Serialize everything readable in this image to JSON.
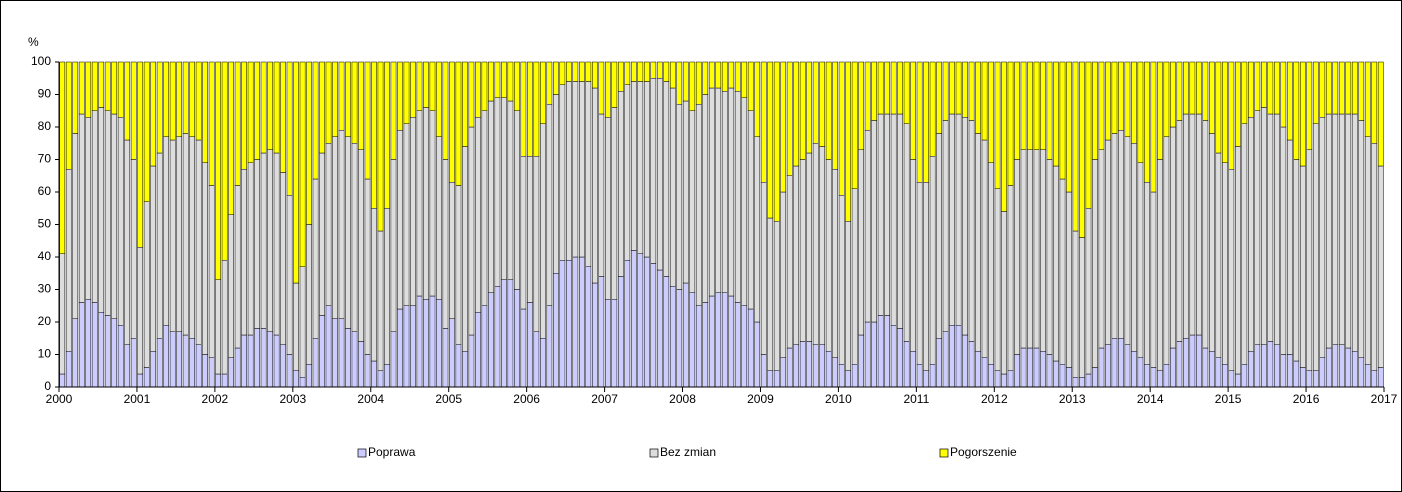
{
  "chart_data": {
    "type": "stacked_bar",
    "y_label": "%",
    "categories": [
      null,
      null,
      null,
      null,
      null,
      null,
      null,
      null,
      null,
      null,
      null,
      null,
      null,
      null,
      null,
      null,
      null,
      null,
      null,
      null,
      null,
      null,
      null,
      null,
      null,
      null,
      null,
      null,
      null,
      null,
      null,
      null,
      null,
      null,
      null,
      null,
      null,
      null,
      null,
      null,
      null,
      null,
      null,
      null,
      null,
      null,
      null,
      null,
      null,
      null,
      null,
      null,
      null,
      null,
      null,
      null,
      null,
      null,
      null,
      null,
      null,
      null,
      null,
      null,
      null,
      null,
      null,
      null,
      null,
      null,
      null,
      null,
      null,
      null,
      null,
      null,
      null,
      null,
      null,
      null,
      null,
      null,
      null,
      null,
      null,
      null,
      null,
      null,
      null,
      null,
      null,
      null,
      null,
      null,
      null,
      null,
      null,
      null,
      null,
      null,
      null,
      null,
      null,
      null,
      null,
      null,
      null,
      null,
      null,
      null,
      null,
      null,
      null,
      null,
      null,
      null,
      null,
      null,
      null,
      null,
      null,
      null,
      null,
      null,
      null,
      null,
      null,
      null,
      null,
      null,
      null,
      null,
      null,
      null,
      null,
      null,
      null,
      null,
      null,
      null,
      null,
      null,
      null,
      null,
      null,
      null,
      null,
      null,
      null,
      null,
      null,
      null,
      null,
      null,
      null,
      null,
      null,
      null,
      null,
      null,
      null,
      null,
      null,
      null,
      null,
      null,
      null,
      null,
      null,
      null,
      null,
      null,
      null,
      null,
      null,
      null,
      null,
      null,
      null,
      null,
      null,
      null,
      null,
      null,
      null,
      null,
      null,
      null,
      null,
      null,
      null,
      null,
      null,
      null,
      null,
      null,
      null,
      null,
      null,
      null,
      null,
      null,
      null,
      null
    ],
    "series": [
      {
        "name": "Poprawa",
        "color": "#ccccff",
        "values": [
          4,
          11,
          21,
          26,
          27,
          26,
          23,
          22,
          21,
          19,
          13,
          15,
          4,
          6,
          11,
          15,
          19,
          17,
          17,
          16,
          15,
          13,
          10,
          9,
          4,
          4,
          9,
          12,
          16,
          16,
          18,
          18,
          17,
          16,
          13,
          10,
          5,
          3,
          7,
          15,
          22,
          25,
          21,
          21,
          18,
          17,
          14,
          10,
          8,
          5,
          7,
          17,
          24,
          25,
          25,
          28,
          27,
          28,
          27,
          18,
          21,
          13,
          11,
          16,
          23,
          25,
          29,
          31,
          33,
          33,
          30,
          24,
          26,
          17,
          15,
          25,
          35,
          39,
          39,
          40,
          40,
          37,
          32,
          34,
          27,
          27,
          34,
          39,
          42,
          41,
          40,
          38,
          36,
          34,
          31,
          30,
          32,
          29,
          25,
          26,
          28,
          29,
          29,
          28,
          26,
          25,
          24,
          20,
          10,
          5,
          5,
          9,
          12,
          13,
          14,
          14,
          13,
          13,
          11,
          9,
          7,
          5,
          7,
          16,
          20,
          20,
          22,
          22,
          19,
          18,
          14,
          11,
          7,
          5,
          7,
          15,
          17,
          19,
          19,
          16,
          14,
          11,
          9,
          7,
          5,
          4,
          5,
          10,
          12,
          12,
          12,
          11,
          10,
          8,
          7,
          6,
          3,
          3,
          4,
          6,
          12,
          13,
          15,
          15,
          13,
          11,
          9,
          7,
          6,
          5,
          7,
          12,
          14,
          15,
          16,
          16,
          12,
          11,
          9,
          7,
          5,
          4,
          7,
          11,
          13,
          13,
          14,
          13,
          10,
          10,
          8,
          6,
          5,
          5,
          9,
          12,
          13,
          13,
          12,
          11,
          9,
          7,
          5,
          6
        ]
      },
      {
        "name": "Bez zmian",
        "color": "#dddddd",
        "values": [
          37,
          56,
          57,
          58,
          56,
          59,
          63,
          63,
          63,
          64,
          63,
          55,
          39,
          51,
          57,
          57,
          58,
          59,
          60,
          62,
          62,
          63,
          59,
          53,
          29,
          35,
          44,
          50,
          51,
          53,
          52,
          54,
          56,
          56,
          53,
          49,
          27,
          34,
          43,
          49,
          50,
          50,
          56,
          58,
          59,
          58,
          59,
          54,
          47,
          43,
          48,
          53,
          55,
          56,
          58,
          57,
          59,
          57,
          50,
          52,
          42,
          49,
          63,
          64,
          60,
          60,
          59,
          58,
          56,
          55,
          55,
          47,
          45,
          54,
          66,
          62,
          55,
          54,
          55,
          54,
          54,
          57,
          60,
          50,
          56,
          59,
          57,
          54,
          52,
          53,
          54,
          57,
          59,
          60,
          61,
          57,
          56,
          56,
          62,
          64,
          64,
          63,
          62,
          64,
          65,
          64,
          61,
          57,
          53,
          47,
          46,
          51,
          53,
          55,
          56,
          58,
          62,
          61,
          59,
          58,
          52,
          46,
          54,
          57,
          59,
          62,
          62,
          62,
          65,
          66,
          67,
          59,
          56,
          58,
          64,
          63,
          65,
          65,
          65,
          67,
          68,
          67,
          67,
          62,
          56,
          50,
          57,
          60,
          61,
          61,
          61,
          62,
          60,
          60,
          57,
          54,
          45,
          43,
          51,
          64,
          61,
          63,
          63,
          64,
          64,
          64,
          60,
          56,
          54,
          65,
          70,
          68,
          68,
          69,
          68,
          68,
          70,
          67,
          63,
          62,
          62,
          70,
          74,
          72,
          72,
          73,
          70,
          71,
          70,
          66,
          62,
          62,
          68,
          76,
          74,
          72,
          71,
          71,
          72,
          73,
          73,
          70,
          70,
          62
        ]
      },
      {
        "name": "Pogorszenie",
        "color": "#ffff00",
        "values": [
          59,
          33,
          22,
          16,
          17,
          15,
          14,
          15,
          16,
          17,
          24,
          30,
          57,
          43,
          32,
          28,
          23,
          24,
          23,
          22,
          23,
          24,
          31,
          38,
          67,
          61,
          47,
          38,
          33,
          31,
          30,
          28,
          27,
          28,
          34,
          41,
          68,
          63,
          50,
          36,
          28,
          25,
          23,
          21,
          23,
          25,
          27,
          36,
          45,
          52,
          45,
          30,
          21,
          19,
          17,
          15,
          14,
          15,
          23,
          30,
          37,
          38,
          26,
          20,
          17,
          15,
          12,
          11,
          11,
          12,
          15,
          29,
          29,
          29,
          19,
          13,
          10,
          7,
          6,
          6,
          6,
          6,
          8,
          16,
          17,
          14,
          9,
          7,
          6,
          6,
          6,
          5,
          5,
          6,
          8,
          13,
          12,
          15,
          13,
          10,
          8,
          8,
          9,
          8,
          9,
          11,
          15,
          23,
          37,
          48,
          49,
          40,
          35,
          32,
          30,
          28,
          25,
          26,
          30,
          33,
          41,
          49,
          39,
          27,
          21,
          18,
          16,
          16,
          16,
          16,
          19,
          30,
          37,
          37,
          29,
          22,
          18,
          16,
          16,
          17,
          18,
          22,
          24,
          31,
          39,
          46,
          38,
          30,
          27,
          27,
          27,
          27,
          30,
          32,
          36,
          40,
          52,
          54,
          45,
          30,
          27,
          24,
          22,
          21,
          23,
          25,
          31,
          37,
          40,
          30,
          23,
          20,
          18,
          16,
          16,
          16,
          18,
          22,
          28,
          31,
          33,
          26,
          19,
          17,
          15,
          14,
          16,
          16,
          20,
          24,
          30,
          32,
          27,
          19,
          17,
          16,
          16,
          16,
          16,
          16,
          18,
          23,
          25,
          32
        ]
      }
    ],
    "ylim": [
      0,
      100
    ],
    "yticks": [
      0,
      10,
      20,
      30,
      40,
      50,
      60,
      70,
      80,
      90,
      100
    ],
    "xlim": [
      2000,
      2017
    ],
    "xticks": [
      2000,
      2001,
      2002,
      2003,
      2004,
      2005,
      2006,
      2007,
      2008,
      2009,
      2010,
      2011,
      2012,
      2013,
      2014,
      2015,
      2016,
      2017
    ],
    "grid": false,
    "legend": "bottom"
  }
}
